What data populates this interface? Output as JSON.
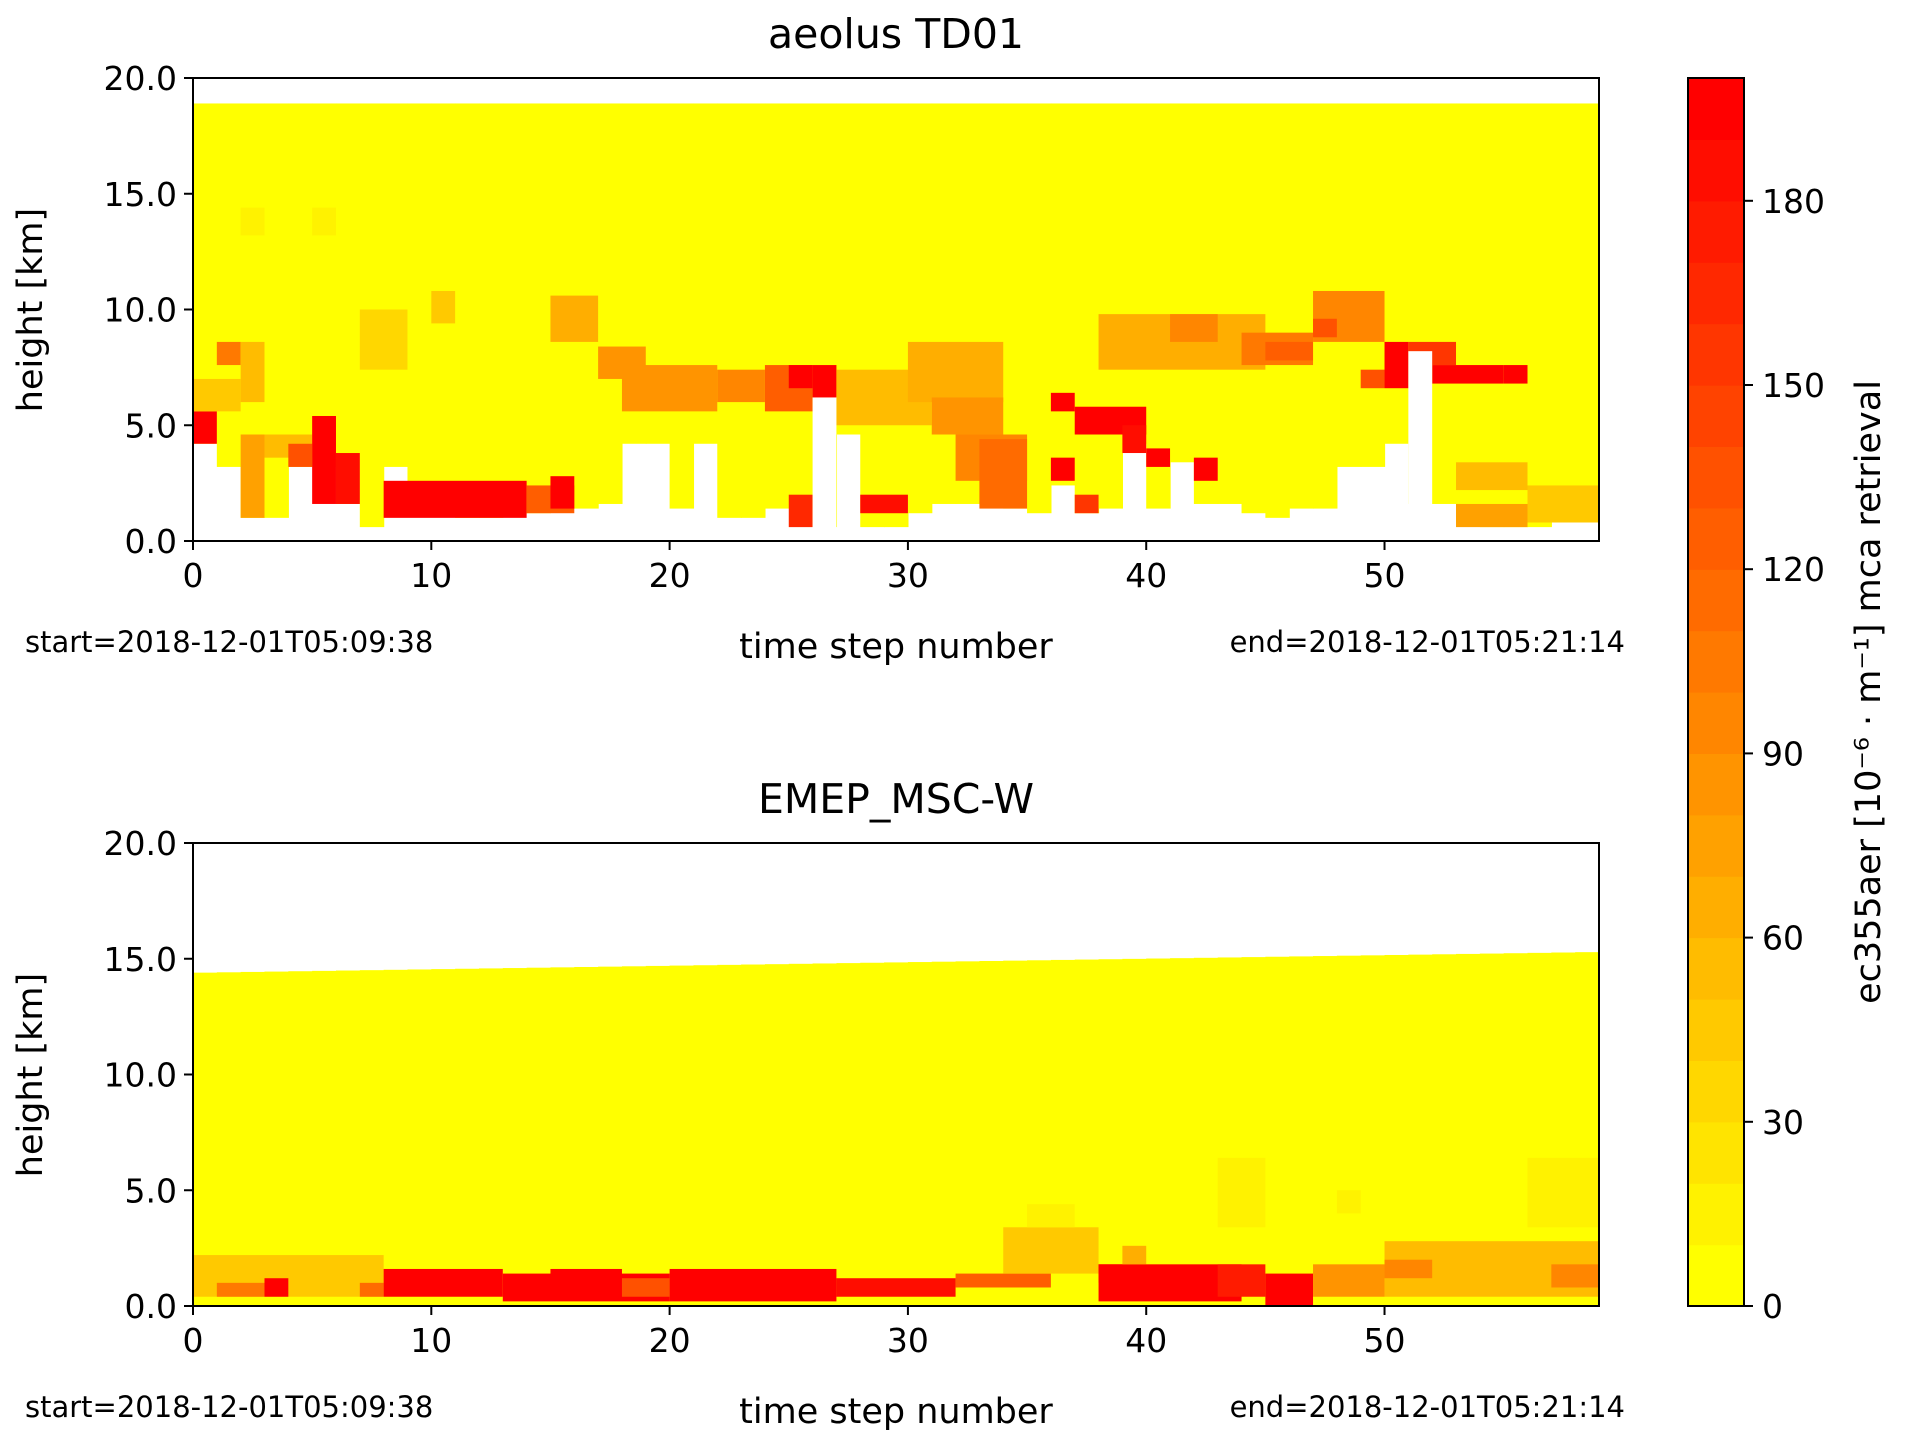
{
  "colors": {
    "low": "#ffff00",
    "mid": "#ffa500",
    "high": "#ff0000",
    "frame": "#000000",
    "background": "#ffffff"
  },
  "colorbar": {
    "label": "ec355aer [10⁻⁶ · m⁻¹] mca retrieval",
    "range": [
      0,
      200
    ],
    "ticks": [
      0,
      30,
      60,
      90,
      120,
      150,
      180
    ],
    "levels": 20
  },
  "chart_data": [
    {
      "type": "heatmap",
      "title": "aeolus TD01",
      "xlabel": "time step number",
      "ylabel": "height [km]",
      "xlim": [
        0,
        59
      ],
      "ylim": [
        0,
        20
      ],
      "xticks": [
        0,
        10,
        20,
        30,
        40,
        50
      ],
      "yticks": [
        "0.0",
        "5.0",
        "10.0",
        "15.0",
        "20.0"
      ],
      "start_label": "start=2018-12-01T05:09:38",
      "end_label": "end=2018-12-01T05:21:14",
      "grid": false,
      "column_top_km": 18.9,
      "column_bottom_km": [
        4.2,
        3.2,
        1.0,
        1.0,
        3.2,
        3.2,
        1.6,
        0.6,
        3.2,
        1.4,
        1.4,
        1.0,
        1.0,
        1.2,
        1.2,
        1.4,
        1.4,
        1.6,
        4.2,
        4.2,
        1.4,
        4.2,
        1.0,
        1.0,
        1.4,
        1.4,
        0.6,
        4.6,
        0.6,
        0.6,
        1.2,
        1.6,
        1.6,
        1.8,
        1.4,
        1.2,
        2.4,
        1.2,
        1.4,
        4.2,
        1.4,
        3.4,
        1.6,
        1.6,
        1.2,
        1.0,
        1.4,
        1.4,
        3.2,
        3.2,
        4.2,
        1.6,
        1.6,
        0.8,
        0.6,
        0.6,
        0.6,
        0.8,
        0.8
      ],
      "column_gaps_km": [
        {
          "x": 26,
          "from": 0,
          "to": 6.2
        },
        {
          "x": 51,
          "from": 0,
          "to": 8.2
        }
      ],
      "patches": [
        {
          "x0": 0,
          "x1": 1,
          "y0": 4.2,
          "y1": 5.6,
          "v": 195
        },
        {
          "x0": 1,
          "x1": 2,
          "y0": 7.6,
          "y1": 8.6,
          "v": 100
        },
        {
          "x0": 0,
          "x1": 2,
          "y0": 5.6,
          "y1": 7.0,
          "v": 40
        },
        {
          "x0": 2,
          "x1": 3,
          "y0": 1.0,
          "y1": 4.6,
          "v": 70
        },
        {
          "x0": 2,
          "x1": 3,
          "y0": 6.0,
          "y1": 8.6,
          "v": 55
        },
        {
          "x0": 2,
          "x1": 3,
          "y0": 13.2,
          "y1": 14.4,
          "v": 15
        },
        {
          "x0": 3,
          "x1": 5,
          "y0": 3.6,
          "y1": 4.6,
          "v": 50
        },
        {
          "x0": 4,
          "x1": 5,
          "y0": 3.2,
          "y1": 4.2,
          "v": 130
        },
        {
          "x0": 5,
          "x1": 6,
          "y0": 13.2,
          "y1": 14.4,
          "v": 15
        },
        {
          "x0": 5,
          "x1": 6,
          "y0": 1.6,
          "y1": 5.4,
          "v": 190
        },
        {
          "x0": 6,
          "x1": 7,
          "y0": 1.6,
          "y1": 3.8,
          "v": 180
        },
        {
          "x0": 7,
          "x1": 9,
          "y0": 7.4,
          "y1": 10.0,
          "v": 35
        },
        {
          "x0": 8,
          "x1": 14,
          "y0": 1.0,
          "y1": 2.6,
          "v": 190
        },
        {
          "x0": 10,
          "x1": 11,
          "y0": 9.4,
          "y1": 10.8,
          "v": 40
        },
        {
          "x0": 14,
          "x1": 16,
          "y0": 1.2,
          "y1": 2.4,
          "v": 120
        },
        {
          "x0": 15,
          "x1": 16,
          "y0": 1.4,
          "y1": 2.8,
          "v": 190
        },
        {
          "x0": 15,
          "x1": 17,
          "y0": 8.6,
          "y1": 10.6,
          "v": 60
        },
        {
          "x0": 17,
          "x1": 19,
          "y0": 7.0,
          "y1": 8.4,
          "v": 80
        },
        {
          "x0": 18,
          "x1": 22,
          "y0": 5.6,
          "y1": 7.6,
          "v": 85
        },
        {
          "x0": 22,
          "x1": 24,
          "y0": 6.0,
          "y1": 7.4,
          "v": 95
        },
        {
          "x0": 24,
          "x1": 26,
          "y0": 5.6,
          "y1": 7.6,
          "v": 120
        },
        {
          "x0": 25,
          "x1": 26,
          "y0": 6.6,
          "y1": 7.6,
          "v": 195
        },
        {
          "x0": 26,
          "x1": 27,
          "y0": 6.2,
          "y1": 7.6,
          "v": 195
        },
        {
          "x0": 25,
          "x1": 26,
          "y0": 0.6,
          "y1": 2.0,
          "v": 160
        },
        {
          "x0": 27,
          "x1": 31,
          "y0": 5.0,
          "y1": 7.4,
          "v": 50
        },
        {
          "x0": 28,
          "x1": 30,
          "y0": 1.2,
          "y1": 2.0,
          "v": 185
        },
        {
          "x0": 30,
          "x1": 34,
          "y0": 6.0,
          "y1": 8.6,
          "v": 60
        },
        {
          "x0": 31,
          "x1": 34,
          "y0": 4.6,
          "y1": 6.2,
          "v": 85
        },
        {
          "x0": 32,
          "x1": 35,
          "y0": 2.6,
          "y1": 4.6,
          "v": 90
        },
        {
          "x0": 33,
          "x1": 35,
          "y0": 1.4,
          "y1": 4.4,
          "v": 110
        },
        {
          "x0": 36,
          "x1": 37,
          "y0": 5.6,
          "y1": 6.4,
          "v": 190
        },
        {
          "x0": 36,
          "x1": 37,
          "y0": 2.6,
          "y1": 3.6,
          "v": 190
        },
        {
          "x0": 37,
          "x1": 40,
          "y0": 4.6,
          "y1": 5.8,
          "v": 195
        },
        {
          "x0": 39,
          "x1": 40,
          "y0": 3.8,
          "y1": 5.0,
          "v": 180
        },
        {
          "x0": 37,
          "x1": 38,
          "y0": 1.2,
          "y1": 2.0,
          "v": 150
        },
        {
          "x0": 40,
          "x1": 41,
          "y0": 3.2,
          "y1": 4.0,
          "v": 190
        },
        {
          "x0": 38,
          "x1": 45,
          "y0": 7.4,
          "y1": 9.8,
          "v": 65
        },
        {
          "x0": 41,
          "x1": 43,
          "y0": 8.6,
          "y1": 9.8,
          "v": 95
        },
        {
          "x0": 42,
          "x1": 43,
          "y0": 2.6,
          "y1": 3.6,
          "v": 190
        },
        {
          "x0": 44,
          "x1": 47,
          "y0": 7.6,
          "y1": 9.0,
          "v": 100
        },
        {
          "x0": 45,
          "x1": 47,
          "y0": 7.8,
          "y1": 8.6,
          "v": 120
        },
        {
          "x0": 47,
          "x1": 50,
          "y0": 8.6,
          "y1": 10.8,
          "v": 90
        },
        {
          "x0": 47,
          "x1": 48,
          "y0": 8.8,
          "y1": 9.6,
          "v": 135
        },
        {
          "x0": 50,
          "x1": 51,
          "y0": 6.6,
          "y1": 8.6,
          "v": 195
        },
        {
          "x0": 49,
          "x1": 50,
          "y0": 6.6,
          "y1": 7.4,
          "v": 130
        },
        {
          "x0": 51,
          "x1": 53,
          "y0": 7.6,
          "y1": 8.6,
          "v": 155
        },
        {
          "x0": 52,
          "x1": 55,
          "y0": 6.8,
          "y1": 7.6,
          "v": 195
        },
        {
          "x0": 55,
          "x1": 56,
          "y0": 6.8,
          "y1": 7.6,
          "v": 195
        },
        {
          "x0": 53,
          "x1": 56,
          "y0": 2.2,
          "y1": 3.4,
          "v": 55
        },
        {
          "x0": 53,
          "x1": 56,
          "y0": 0.6,
          "y1": 1.6,
          "v": 70
        },
        {
          "x0": 56,
          "x1": 59,
          "y0": 0.8,
          "y1": 2.4,
          "v": 45
        }
      ]
    },
    {
      "type": "heatmap",
      "title": "EMEP_MSC-W",
      "xlabel": "time step number",
      "ylabel": "height [km]",
      "xlim": [
        0,
        59
      ],
      "ylim": [
        0,
        20
      ],
      "xticks": [
        0,
        10,
        20,
        30,
        40,
        50
      ],
      "yticks": [
        "0.0",
        "5.0",
        "10.0",
        "15.0",
        "20.0"
      ],
      "start_label": "start=2018-12-01T05:09:38",
      "end_label": "end=2018-12-01T05:21:14",
      "grid": false,
      "column_top_km": [
        14.4,
        15.3
      ],
      "patches": [
        {
          "x0": 0,
          "x1": 8,
          "y0": 0.4,
          "y1": 2.2,
          "v": 45
        },
        {
          "x0": 1,
          "x1": 3,
          "y0": 0.4,
          "y1": 1.0,
          "v": 100
        },
        {
          "x0": 3,
          "x1": 4,
          "y0": 0.4,
          "y1": 1.2,
          "v": 195
        },
        {
          "x0": 7,
          "x1": 8,
          "y0": 0.4,
          "y1": 1.0,
          "v": 110
        },
        {
          "x0": 8,
          "x1": 13,
          "y0": 0.4,
          "y1": 1.6,
          "v": 190
        },
        {
          "x0": 13,
          "x1": 20,
          "y0": 0.2,
          "y1": 1.4,
          "v": 195
        },
        {
          "x0": 15,
          "x1": 18,
          "y0": 0.4,
          "y1": 1.6,
          "v": 195
        },
        {
          "x0": 18,
          "x1": 20,
          "y0": 0.4,
          "y1": 1.2,
          "v": 130
        },
        {
          "x0": 20,
          "x1": 27,
          "y0": 0.2,
          "y1": 1.6,
          "v": 195
        },
        {
          "x0": 27,
          "x1": 32,
          "y0": 0.4,
          "y1": 1.2,
          "v": 185
        },
        {
          "x0": 32,
          "x1": 36,
          "y0": 0.8,
          "y1": 1.4,
          "v": 120
        },
        {
          "x0": 34,
          "x1": 38,
          "y0": 1.4,
          "y1": 3.4,
          "v": 45
        },
        {
          "x0": 35,
          "x1": 37,
          "y0": 3.4,
          "y1": 4.4,
          "v": 15
        },
        {
          "x0": 38,
          "x1": 40,
          "y0": 1.0,
          "y1": 1.8,
          "v": 185
        },
        {
          "x0": 38,
          "x1": 44,
          "y0": 0.2,
          "y1": 1.8,
          "v": 190
        },
        {
          "x0": 39,
          "x1": 40,
          "y0": 1.8,
          "y1": 2.6,
          "v": 60
        },
        {
          "x0": 43,
          "x1": 45,
          "y0": 0.4,
          "y1": 1.8,
          "v": 175
        },
        {
          "x0": 45,
          "x1": 47,
          "y0": 0.0,
          "y1": 1.4,
          "v": 195
        },
        {
          "x0": 47,
          "x1": 50,
          "y0": 0.4,
          "y1": 1.8,
          "v": 80
        },
        {
          "x0": 50,
          "x1": 59,
          "y0": 0.4,
          "y1": 2.8,
          "v": 55
        },
        {
          "x0": 50,
          "x1": 52,
          "y0": 1.2,
          "y1": 2.0,
          "v": 95
        },
        {
          "x0": 57,
          "x1": 59,
          "y0": 0.8,
          "y1": 1.8,
          "v": 90
        },
        {
          "x0": 43,
          "x1": 45,
          "y0": 3.4,
          "y1": 6.4,
          "v": 10
        },
        {
          "x0": 48,
          "x1": 49,
          "y0": 4.0,
          "y1": 5.0,
          "v": 10
        },
        {
          "x0": 56,
          "x1": 59,
          "y0": 3.4,
          "y1": 6.4,
          "v": 10
        }
      ]
    }
  ]
}
